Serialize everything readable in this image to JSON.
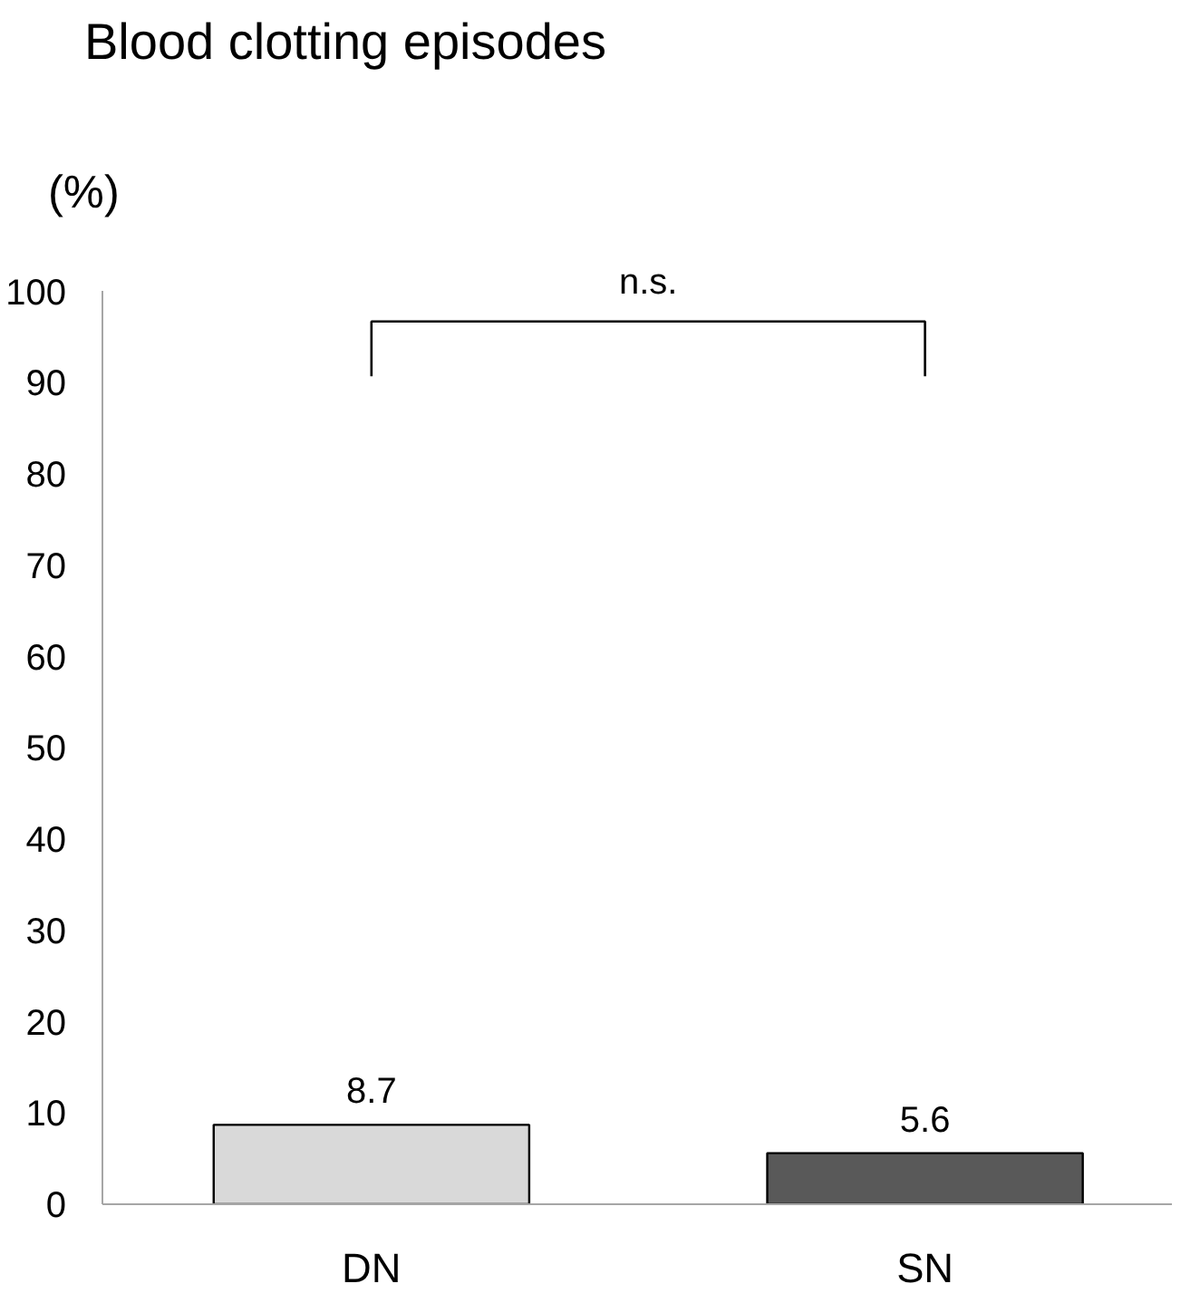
{
  "chart_data": {
    "type": "bar",
    "title": "Blood clotting episodes",
    "ylabel": "(%)",
    "categories": [
      "DN",
      "SN"
    ],
    "values": [
      8.7,
      5.6
    ],
    "colors": [
      "#d9d9d9",
      "#595959"
    ],
    "ylim": [
      0,
      100
    ],
    "yticks": [
      0,
      10,
      20,
      30,
      40,
      50,
      60,
      70,
      80,
      90,
      100
    ],
    "data_labels": true,
    "grid": false,
    "annotations": [
      "n.s."
    ]
  }
}
